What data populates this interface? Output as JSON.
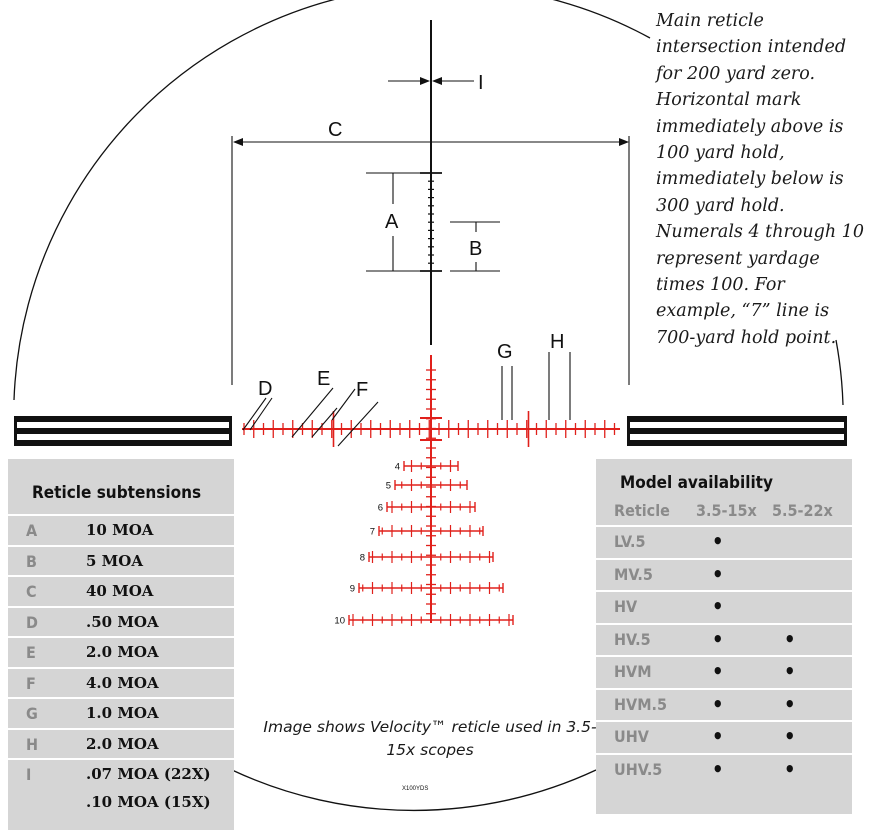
{
  "note": "Main reticle intersection intended for 200 yard zero. Horizontal mark immediately above is 100 yard hold, immediately below is 300 yard hold. Numerals 4 through 10 represent yardage times 100. For example, “7” line is 700-yard hold point.",
  "caption": "Image shows Velocity™ reticle used in 3.5-15x scopes",
  "footer_mark": "X100YDS",
  "dimension_labels": {
    "A": "A",
    "B": "B",
    "C": "C",
    "D": "D",
    "E": "E",
    "F": "F",
    "G": "G",
    "H": "H",
    "I": "I"
  },
  "yardage_numerals": [
    "4",
    "5",
    "6",
    "7",
    "8",
    "9",
    "10"
  ],
  "colors": {
    "reticle_red": "#e0201b",
    "reticle_black": "#111111",
    "panel_bg": "#d5d5d5",
    "letter_gray": "#8a8a8a"
  },
  "subtensions": {
    "title": "Reticle subtensions",
    "rows": [
      {
        "letter": "A",
        "value": "10 MOA"
      },
      {
        "letter": "B",
        "value": "5 MOA"
      },
      {
        "letter": "C",
        "value": "40 MOA"
      },
      {
        "letter": "D",
        "value": ".50 MOA"
      },
      {
        "letter": "E",
        "value": "2.0 MOA"
      },
      {
        "letter": "F",
        "value": "4.0 MOA"
      },
      {
        "letter": "G",
        "value": "1.0 MOA"
      },
      {
        "letter": "H",
        "value": "2.0 MOA"
      },
      {
        "letter": "I",
        "value": ".07 MOA (22X)",
        "value2": ".10 MOA (15X)"
      }
    ]
  },
  "models": {
    "title": "Model availability",
    "headers": [
      "Reticle",
      "3.5-15x",
      "5.5-22x"
    ],
    "dot": "•",
    "rows": [
      {
        "name": "LV.5",
        "c1": "•",
        "c2": ""
      },
      {
        "name": "MV.5",
        "c1": "•",
        "c2": ""
      },
      {
        "name": "HV",
        "c1": "•",
        "c2": ""
      },
      {
        "name": "HV.5",
        "c1": "•",
        "c2": "•"
      },
      {
        "name": "HVM",
        "c1": "•",
        "c2": "•"
      },
      {
        "name": "HVM.5",
        "c1": "•",
        "c2": "•"
      },
      {
        "name": "UHV",
        "c1": "•",
        "c2": "•"
      },
      {
        "name": "UHV.5",
        "c1": "•",
        "c2": "•"
      }
    ]
  }
}
